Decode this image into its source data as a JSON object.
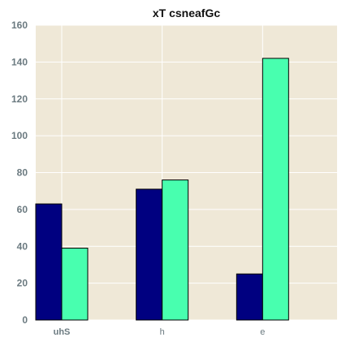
{
  "chart_data": {
    "type": "bar",
    "title": "xT csneafGc",
    "xlabel": "",
    "ylabel": "",
    "categories": [
      "uhS",
      "h",
      "e"
    ],
    "series": [
      {
        "color": "#000080",
        "values": [
          63,
          71,
          25
        ]
      },
      {
        "color": "#48ffaf",
        "values": [
          39,
          76,
          142
        ]
      }
    ],
    "ylim": [
      0,
      160
    ],
    "yticks": [
      0,
      20,
      40,
      60,
      80,
      100,
      120,
      140,
      160
    ],
    "grid": true,
    "background": "#efe8d7",
    "legend": "none"
  }
}
